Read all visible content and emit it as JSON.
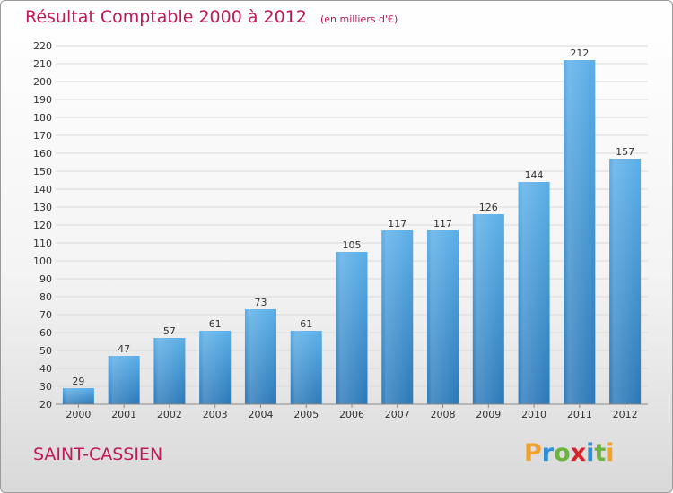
{
  "title": "Résultat Comptable 2000 à 2012",
  "subtitle": "(en milliers d'€)",
  "commune": "SAINT-CASSIEN",
  "logo": {
    "text": "Proxiti",
    "letters": [
      {
        "ch": "P",
        "color": "#f0a22a"
      },
      {
        "ch": "r",
        "color": "#2d8fd5"
      },
      {
        "ch": "o",
        "color": "#6cb33f"
      },
      {
        "ch": "x",
        "color": "#d8232a"
      },
      {
        "ch": "i",
        "color": "#2d8fd5"
      },
      {
        "ch": "t",
        "color": "#6cb33f"
      },
      {
        "ch": "i",
        "color": "#f0a22a"
      }
    ]
  },
  "colors": {
    "accent": "#c0185a",
    "bar_top": "#5aaee8",
    "bar_bottom": "#2a78b8",
    "grid": "#d9d9d9",
    "axis_text": "#333333"
  },
  "chart_data": {
    "type": "bar",
    "title": "Résultat Comptable 2000 à 2012",
    "subtitle": "(en milliers d'€)",
    "categories": [
      "2000",
      "2001",
      "2002",
      "2003",
      "2004",
      "2005",
      "2006",
      "2007",
      "2008",
      "2009",
      "2010",
      "2011",
      "2012"
    ],
    "values": [
      29,
      47,
      57,
      61,
      73,
      61,
      105,
      117,
      117,
      126,
      144,
      212,
      157
    ],
    "ylim": [
      20,
      220
    ],
    "yticks": [
      20,
      30,
      40,
      50,
      60,
      70,
      80,
      90,
      100,
      110,
      120,
      130,
      140,
      150,
      160,
      170,
      180,
      190,
      200,
      210,
      220
    ],
    "grid": true,
    "data_labels": true,
    "xlabel": "",
    "ylabel": ""
  }
}
